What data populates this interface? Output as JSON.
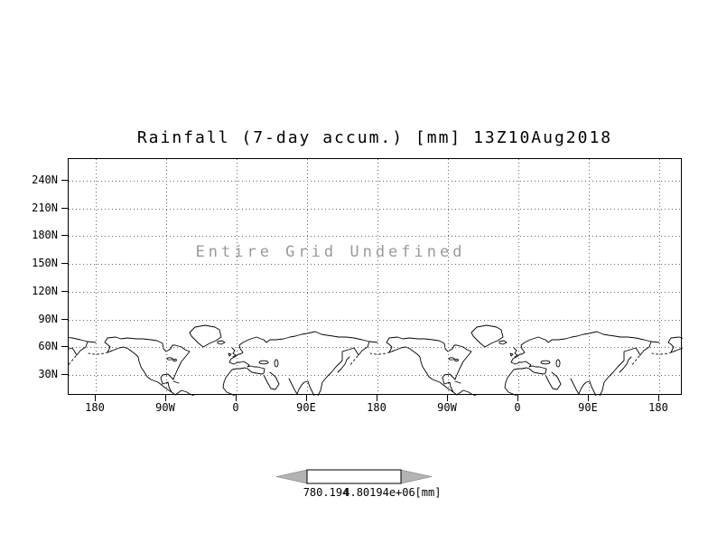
{
  "title": "Rainfall (7-day accum.) [mm] 13Z10Aug2018",
  "plot": {
    "undefined_message": "Entire Grid Undefined",
    "y_ticks": [
      "240N",
      "210N",
      "180N",
      "150N",
      "120N",
      "90N",
      "60N",
      "30N"
    ],
    "x_ticks": [
      "180",
      "90W",
      "0",
      "90E",
      "180",
      "90W",
      "0",
      "90E",
      "180"
    ]
  },
  "colorbar": {
    "left_label": "780.194",
    "right_label": "4.80194e+06",
    "units": "[mm]"
  },
  "colors": {
    "foreground": "#000000",
    "undefined_text": "#9a9a9a",
    "colorbar_fill": "#b3b3b3"
  },
  "chart_data": {
    "type": "heatmap",
    "title": "Rainfall (7-day accum.) [mm] 13Z10Aug2018",
    "variable": "Rainfall (7-day accum.)",
    "units": "mm",
    "timestamp": "13Z10Aug2018",
    "x_tick_labels": [
      "180",
      "90W",
      "0",
      "90E",
      "180",
      "90W",
      "0",
      "90E",
      "180"
    ],
    "y_tick_labels": [
      "240N",
      "210N",
      "180N",
      "150N",
      "120N",
      "90N",
      "60N",
      "30N"
    ],
    "values": [],
    "annotation": "Entire Grid Undefined",
    "grid": true,
    "legend_position": "bottom",
    "basemap": "world coastlines repeated twice along x-axis",
    "colorbar_labels": [
      "780.194",
      "4.80194e+06"
    ]
  }
}
